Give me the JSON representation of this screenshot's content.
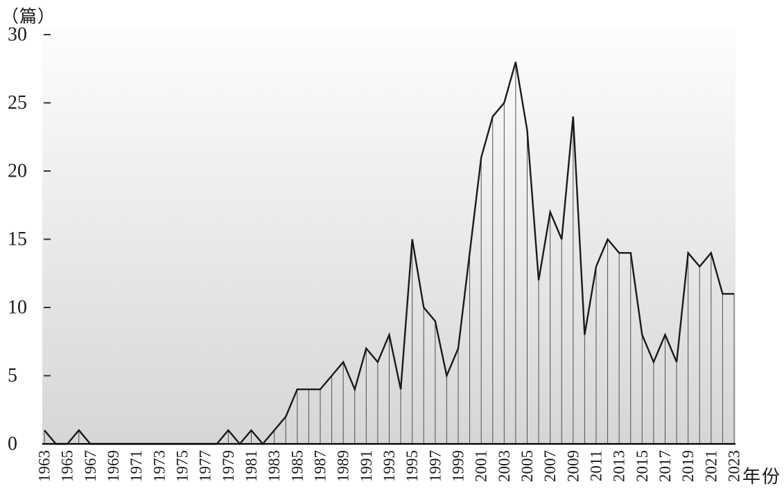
{
  "figure": {
    "y_unit_label": "（篇）",
    "x_unit_label": "年份"
  },
  "style": {
    "plot_bg_top": "#fdfdfd",
    "plot_bg_bottom": "#d6d6d6",
    "curve_color": "#1a1a1a",
    "dropline_color": "#4f4f4f",
    "axis_color": "#000000",
    "tick_color": "#333333",
    "text_color": "#1a1a1a"
  },
  "chart_data": {
    "type": "line",
    "title": "",
    "xlabel": "年份",
    "ylabel": "（篇）",
    "ylim": [
      0,
      30
    ],
    "yticks": [
      0,
      5,
      10,
      15,
      20,
      25,
      30
    ],
    "grid": false,
    "legend": null,
    "drop_lines": true,
    "x": [
      1963,
      1964,
      1965,
      1966,
      1967,
      1968,
      1969,
      1970,
      1971,
      1972,
      1973,
      1974,
      1975,
      1976,
      1977,
      1978,
      1979,
      1980,
      1981,
      1982,
      1983,
      1984,
      1985,
      1986,
      1987,
      1988,
      1989,
      1990,
      1991,
      1992,
      1993,
      1994,
      1995,
      1996,
      1997,
      1998,
      1999,
      2000,
      2001,
      2002,
      2003,
      2004,
      2005,
      2006,
      2007,
      2008,
      2009,
      2010,
      2011,
      2012,
      2013,
      2014,
      2015,
      2016,
      2017,
      2018,
      2019,
      2020,
      2021,
      2022,
      2023
    ],
    "values": [
      1,
      0,
      0,
      1,
      0,
      0,
      0,
      0,
      0,
      0,
      0,
      0,
      0,
      0,
      0,
      0,
      1,
      0,
      1,
      0,
      1,
      2,
      4,
      4,
      4,
      5,
      6,
      4,
      7,
      6,
      8,
      4,
      15,
      10,
      9,
      5,
      7,
      14,
      21,
      24,
      25,
      28,
      23,
      12,
      17,
      15,
      24,
      8,
      13,
      15,
      14,
      14,
      8,
      6,
      8,
      6,
      14,
      13,
      14,
      11,
      11
    ],
    "xtick_labels": [
      "1963",
      "1965",
      "1967",
      "1969",
      "1971",
      "1973",
      "1975",
      "1977",
      "1979",
      "1981",
      "1983",
      "1985",
      "1987",
      "1989",
      "1991",
      "1993",
      "1995",
      "1997",
      "1999",
      "2001",
      "2003",
      "2005",
      "2007",
      "2009",
      "2011",
      "2013",
      "2015",
      "2017",
      "2019",
      "2021",
      "2023"
    ]
  }
}
